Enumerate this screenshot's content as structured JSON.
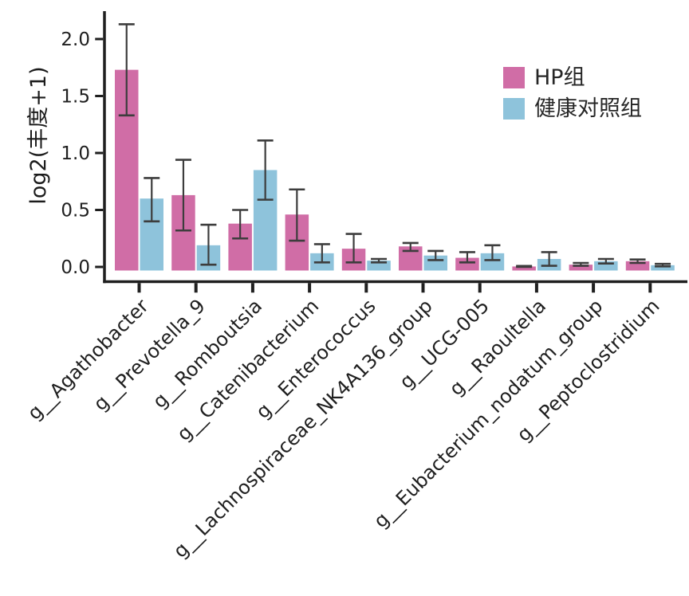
{
  "chart": {
    "ylabel": "log2(丰度+1)",
    "legend_items": [
      {
        "label": "HP组",
        "color": "#d06da6"
      },
      {
        "label": "健康对照组",
        "color": "#8ec3db"
      }
    ]
  },
  "chart_data": {
    "type": "bar",
    "title": "",
    "xlabel": "",
    "ylabel": "log2(丰度+1)",
    "grid": false,
    "legend_position": "upper right",
    "error_bars": true,
    "error_bar_color": "#3d3d3d",
    "axis_color": "#1f1f1f",
    "ylim": [
      0,
      2.2
    ],
    "yticks": [
      "0.0",
      "0.5",
      "1.0",
      "1.5",
      "2.0"
    ],
    "ytick_values": [
      0.0,
      0.5,
      1.0,
      1.5,
      2.0
    ],
    "categories": [
      "g__Agathobacter",
      "g__Prevotella_9",
      "g__Romboutsia",
      "g__Catenibacterium",
      "g__Enterococcus",
      "g__Lachnospiraceae_NK4A136_group",
      "g__UCG-005",
      "g__Raoultella",
      "g__Eubacterium_nodatum_group",
      "g__Peptoclostridium"
    ],
    "series": [
      {
        "name": "HP组",
        "key": "hp",
        "color": "#d06da6",
        "values": [
          1.73,
          0.63,
          0.38,
          0.46,
          0.16,
          0.18,
          0.08,
          0.004,
          0.02,
          0.05
        ],
        "err_low": [
          1.33,
          0.32,
          0.25,
          0.23,
          0.04,
          0.14,
          0.04,
          0.0,
          0.01,
          0.035
        ],
        "err_high": [
          2.13,
          0.94,
          0.5,
          0.68,
          0.29,
          0.21,
          0.13,
          0.008,
          0.035,
          0.065
        ]
      },
      {
        "name": "健康对照组",
        "key": "healthy",
        "color": "#8ec3db",
        "values": [
          0.6,
          0.19,
          0.85,
          0.12,
          0.055,
          0.1,
          0.12,
          0.07,
          0.05,
          0.015
        ],
        "err_low": [
          0.4,
          0.02,
          0.59,
          0.04,
          0.04,
          0.06,
          0.06,
          0.01,
          0.03,
          0.005
        ],
        "err_high": [
          0.78,
          0.37,
          1.11,
          0.2,
          0.07,
          0.14,
          0.19,
          0.13,
          0.07,
          0.027
        ]
      }
    ]
  }
}
